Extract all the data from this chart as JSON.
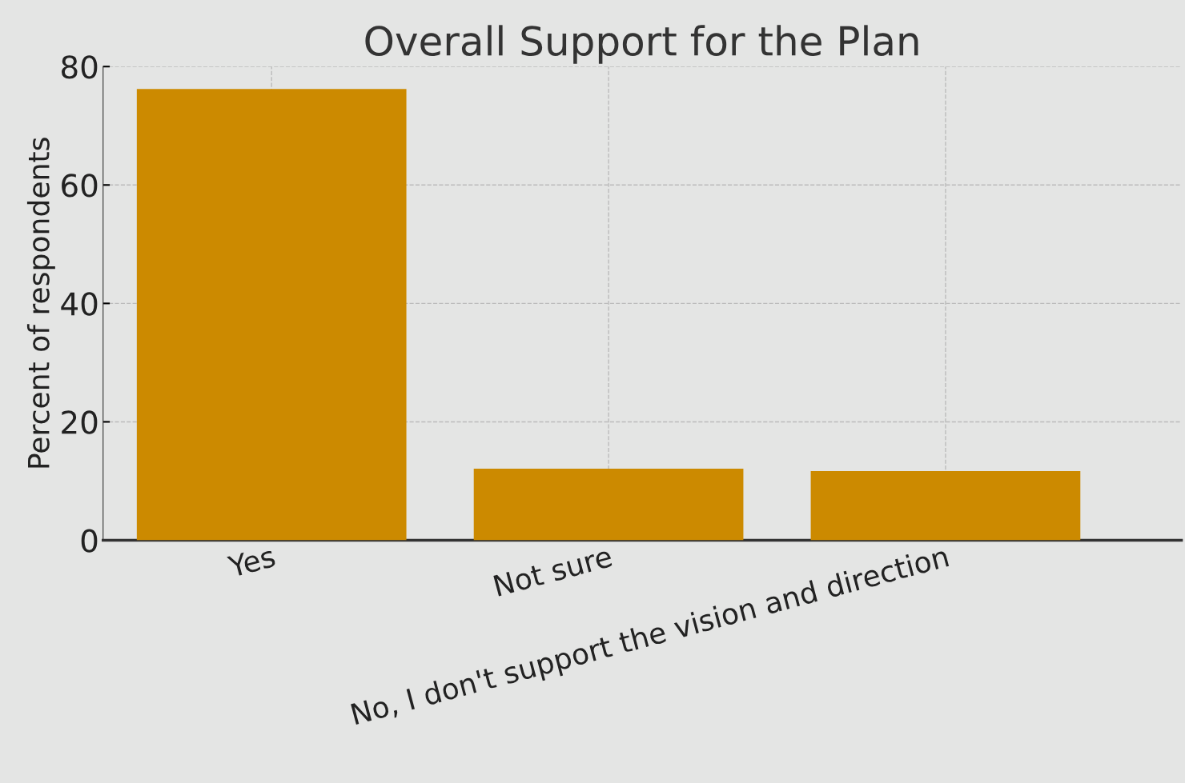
{
  "chart_data": {
    "type": "bar",
    "title": "Overall Support for the Plan",
    "ylabel": "Percent of respondents",
    "categories": [
      "Yes",
      "Not sure",
      "No, I don't support the vision and direction"
    ],
    "values": [
      76.2,
      12.1,
      11.7
    ],
    "color": "#cc8a00",
    "ylim": [
      0,
      80
    ],
    "yticks": [
      0,
      20,
      40,
      60,
      80
    ],
    "grid": true
  }
}
